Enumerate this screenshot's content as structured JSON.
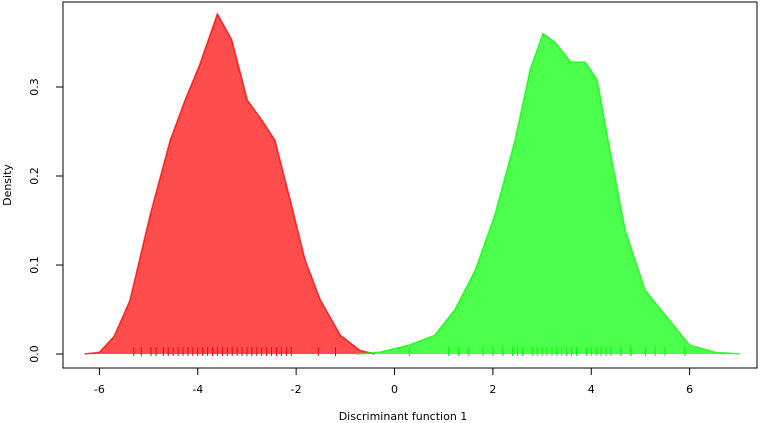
{
  "chart_data": {
    "type": "area",
    "x_label": "Discriminant function 1",
    "y_label": "Density",
    "xlim": [
      -6.74,
      7.37
    ],
    "ylim": [
      -0.0157,
      0.3955
    ],
    "xticks": [
      -6,
      -4,
      -2,
      0,
      2,
      4,
      6
    ],
    "yticks": [
      {
        "value": 0,
        "label": "0.0"
      },
      0.1,
      0.2,
      0.3
    ],
    "grid": false,
    "series": [
      {
        "color": "#ff0000",
        "x": [
          -6.3,
          -6.0,
          -5.7,
          -5.38,
          -4.97,
          -4.56,
          -4.26,
          -3.96,
          -3.6,
          -3.31,
          -2.99,
          -2.7,
          -2.43,
          -2.12,
          -1.82,
          -1.51,
          -1.1,
          -0.7,
          -0.4
        ],
        "values": [
          0,
          0.002,
          0.02,
          0.06,
          0.156,
          0.24,
          0.285,
          0.325,
          0.382,
          0.353,
          0.285,
          0.263,
          0.24,
          0.173,
          0.106,
          0.061,
          0.021,
          0.004,
          0
        ],
        "rug": [
          -5.3,
          -5.15,
          -4.95,
          -4.85,
          -4.7,
          -4.6,
          -4.5,
          -4.4,
          -4.3,
          -4.2,
          -4.1,
          -4.0,
          -3.9,
          -3.8,
          -3.7,
          -3.6,
          -3.5,
          -3.4,
          -3.3,
          -3.2,
          -3.1,
          -3.0,
          -2.9,
          -2.8,
          -2.7,
          -2.6,
          -2.5,
          -2.4,
          -2.3,
          -2.2,
          -2.1,
          -1.55,
          -1.2
        ]
      },
      {
        "color": "#00ff00",
        "x": [
          -0.8,
          -0.3,
          0.3,
          0.82,
          1.23,
          1.64,
          2.04,
          2.45,
          2.76,
          3.02,
          3.27,
          3.58,
          3.88,
          4.12,
          4.38,
          4.69,
          5.09,
          5.5,
          6.0,
          6.51,
          7.02
        ],
        "values": [
          0,
          0.002,
          0.01,
          0.021,
          0.05,
          0.094,
          0.156,
          0.24,
          0.32,
          0.36,
          0.35,
          0.328,
          0.328,
          0.308,
          0.229,
          0.139,
          0.072,
          0.044,
          0.01,
          0.002,
          0
        ],
        "rug": [
          0.3,
          1.1,
          1.3,
          1.5,
          1.8,
          2.0,
          2.2,
          2.4,
          2.5,
          2.6,
          2.8,
          2.9,
          3.0,
          3.1,
          3.2,
          3.3,
          3.4,
          3.5,
          3.6,
          3.7,
          3.9,
          4.0,
          4.1,
          4.2,
          4.3,
          4.4,
          4.6,
          4.8,
          5.1,
          5.3,
          5.5,
          5.9
        ]
      }
    ]
  }
}
